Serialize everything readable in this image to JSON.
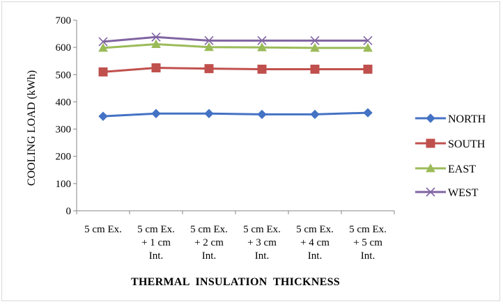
{
  "chart_data": {
    "type": "line",
    "title": "",
    "xlabel": "THERMAL  INSULATION  THICKNESS",
    "ylabel": "COOLING LOAD (kWh)",
    "ylim": [
      0,
      700
    ],
    "yticks": [
      "0",
      "100",
      "200",
      "300",
      "400",
      "500",
      "600",
      "700"
    ],
    "grid": false,
    "legend_position": "right",
    "categories": [
      [
        "5 cm Ex."
      ],
      [
        "5 cm Ex.",
        "+ 1 cm",
        "Int."
      ],
      [
        "5 cm Ex.",
        "+ 2 cm",
        "Int."
      ],
      [
        "5 cm Ex.",
        "+ 3 cm",
        "Int."
      ],
      [
        "5 cm Ex.",
        "+ 4 cm",
        "Int."
      ],
      [
        "5 cm Ex.",
        "+ 5 cm",
        "Int."
      ]
    ],
    "series": [
      {
        "name": "NORTH",
        "values": [
          347,
          357,
          357,
          354,
          354,
          360
        ],
        "color": "#4472c4",
        "marker": "diamond"
      },
      {
        "name": "SOUTH",
        "values": [
          510,
          525,
          522,
          520,
          520,
          520
        ],
        "color": "#c0504d",
        "marker": "square"
      },
      {
        "name": "EAST",
        "values": [
          598,
          612,
          601,
          600,
          598,
          598
        ],
        "color": "#9bbb59",
        "marker": "triangle"
      },
      {
        "name": "WEST",
        "values": [
          621,
          638,
          625,
          625,
          625,
          625
        ],
        "color": "#8064a2",
        "marker": "x"
      }
    ]
  }
}
